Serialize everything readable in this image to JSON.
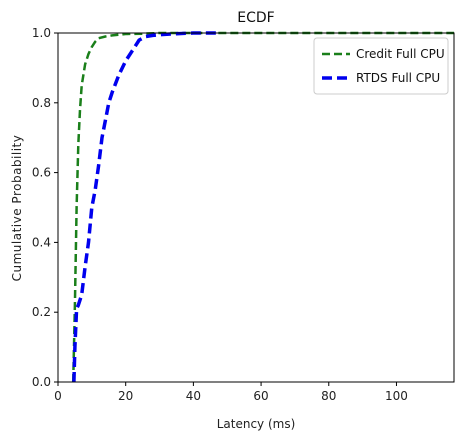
{
  "chart_data": {
    "type": "line",
    "title": "ECDF",
    "xlabel": "Latency (ms)",
    "ylabel": "Cumulative Probability",
    "xlim": [
      0,
      117
    ],
    "ylim": [
      0,
      1.0
    ],
    "xticks": [
      0,
      20,
      40,
      60,
      80,
      100
    ],
    "yticks": [
      0.0,
      0.2,
      0.4,
      0.6,
      0.8,
      1.0
    ],
    "xtick_labels": [
      "0",
      "20",
      "40",
      "60",
      "80",
      "100"
    ],
    "ytick_labels": [
      "0.0",
      "0.2",
      "0.4",
      "0.6",
      "0.8",
      "1.0"
    ],
    "grid": false,
    "legend_position": "top-right",
    "series": [
      {
        "name": "Credit Full CPU",
        "color": "#1a7f1a",
        "style": "dashed",
        "x": [
          4.5,
          5,
          5.5,
          6,
          6.5,
          7,
          8,
          9,
          10,
          11,
          12,
          14,
          16,
          18,
          20,
          25,
          30,
          40,
          60,
          80,
          100,
          117
        ],
        "y": [
          0,
          0.22,
          0.5,
          0.68,
          0.78,
          0.85,
          0.91,
          0.94,
          0.96,
          0.975,
          0.985,
          0.99,
          0.993,
          0.995,
          0.997,
          0.998,
          1.0,
          1.0,
          1.0,
          1.0,
          1.0,
          1.0
        ]
      },
      {
        "name": "RTDS Full CPU",
        "color": "#0000ee",
        "style": "dashed",
        "x": [
          4.7,
          5,
          5.5,
          6,
          7,
          8,
          9,
          10,
          11,
          12,
          13,
          14,
          15,
          16,
          18,
          20,
          22,
          24,
          26,
          28,
          30,
          35,
          40,
          45,
          48
        ],
        "y": [
          0,
          0.1,
          0.21,
          0.22,
          0.25,
          0.33,
          0.4,
          0.5,
          0.55,
          0.62,
          0.7,
          0.75,
          0.8,
          0.83,
          0.88,
          0.92,
          0.95,
          0.98,
          0.99,
          0.993,
          0.995,
          0.998,
          1.0,
          1.0,
          1.0
        ]
      }
    ]
  }
}
